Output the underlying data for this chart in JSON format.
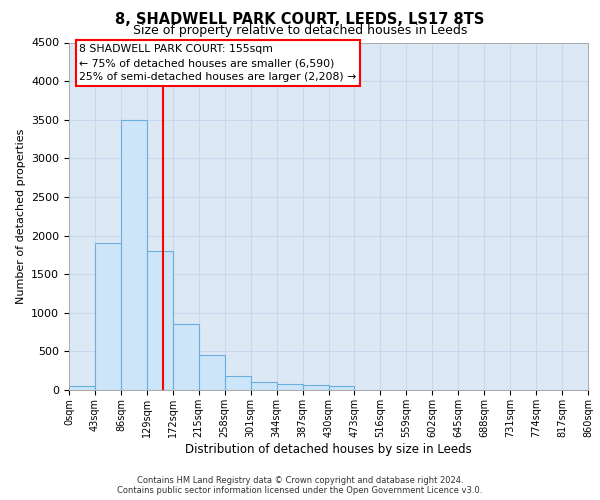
{
  "title": "8, SHADWELL PARK COURT, LEEDS, LS17 8TS",
  "subtitle": "Size of property relative to detached houses in Leeds",
  "xlabel": "Distribution of detached houses by size in Leeds",
  "ylabel": "Number of detached properties",
  "footer_line1": "Contains HM Land Registry data © Crown copyright and database right 2024.",
  "footer_line2": "Contains public sector information licensed under the Open Government Licence v3.0.",
  "bin_labels": [
    "0sqm",
    "43sqm",
    "86sqm",
    "129sqm",
    "172sqm",
    "215sqm",
    "258sqm",
    "301sqm",
    "344sqm",
    "387sqm",
    "430sqm",
    "473sqm",
    "516sqm",
    "559sqm",
    "602sqm",
    "645sqm",
    "688sqm",
    "731sqm",
    "774sqm",
    "817sqm",
    "860sqm"
  ],
  "bar_values": [
    50,
    1900,
    3500,
    1800,
    850,
    450,
    175,
    100,
    80,
    60,
    50,
    0,
    0,
    0,
    0,
    0,
    0,
    0,
    0,
    0
  ],
  "bar_color": "#cce5f8",
  "bar_edge_color": "#6aaedd",
  "ylim": [
    0,
    4500
  ],
  "yticks": [
    0,
    500,
    1000,
    1500,
    2000,
    2500,
    3000,
    3500,
    4000,
    4500
  ],
  "annotation_text_line1": "8 SHADWELL PARK COURT: 155sqm",
  "annotation_text_line2": "← 75% of detached houses are smaller (6,590)",
  "annotation_text_line3": "25% of semi-detached houses are larger (2,208) →",
  "line_color": "red",
  "grid_color": "#c8d8ec",
  "background_color": "#dde8f5"
}
